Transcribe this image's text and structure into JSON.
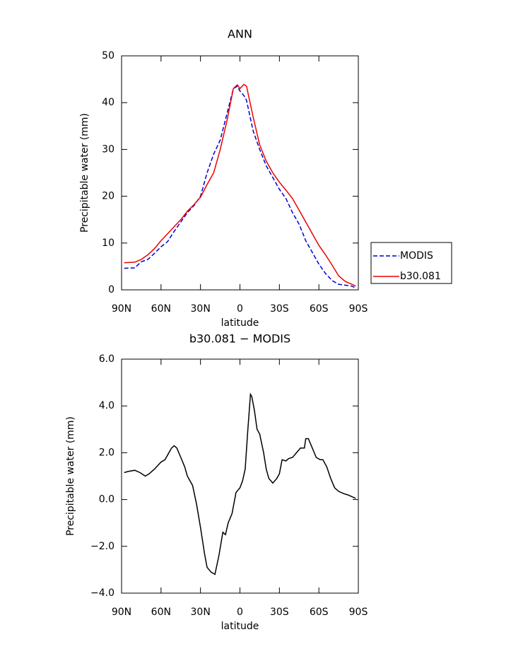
{
  "chart_data": [
    {
      "type": "line",
      "title": "ANN",
      "xlabel": "latitude",
      "ylabel": "Precipitable water (mm)",
      "x": [
        88,
        80,
        75,
        70,
        65,
        60,
        55,
        50,
        45,
        40,
        35,
        30,
        25,
        20,
        15,
        10,
        5,
        2,
        0,
        -3,
        -5,
        -10,
        -15,
        -20,
        -25,
        -30,
        -35,
        -40,
        -45,
        -50,
        -55,
        -60,
        -65,
        -70,
        -75,
        -80,
        -85,
        -88
      ],
      "series": [
        {
          "name": "MODIS",
          "color": "#0000cc",
          "linestyle": "dashed",
          "values": [
            4.6,
            4.7,
            6,
            6.5,
            7.8,
            9.2,
            10.3,
            12.5,
            14.5,
            16.5,
            18,
            20,
            25,
            29,
            32,
            37.5,
            43,
            43.5,
            42.5,
            41.5,
            40.5,
            34,
            30,
            26.5,
            24,
            21.5,
            19.5,
            16.5,
            14,
            10.5,
            8,
            5.5,
            3.5,
            2,
            1.2,
            1,
            0.8,
            0.4
          ]
        },
        {
          "name": "b30.081",
          "color": "#ee0000",
          "linestyle": "solid",
          "values": [
            5.8,
            5.9,
            6.5,
            7.5,
            8.8,
            10.5,
            12,
            13.5,
            15,
            16.8,
            18.2,
            19.8,
            22.5,
            25,
            30,
            36,
            43,
            43.8,
            43,
            43.9,
            43.5,
            37,
            31,
            27.5,
            25,
            23,
            21.3,
            19.5,
            17,
            14.5,
            12,
            9.5,
            7.5,
            5.3,
            3,
            1.8,
            1.2,
            0.8
          ]
        }
      ],
      "xlim": [
        90,
        -90
      ],
      "xticks": [
        {
          "value": 90,
          "label": "90N"
        },
        {
          "value": 60,
          "label": "60N"
        },
        {
          "value": 30,
          "label": "30N"
        },
        0,
        {
          "value": -30,
          "label": "30S"
        },
        {
          "value": -60,
          "label": "60S"
        },
        {
          "value": -90,
          "label": "90S"
        }
      ],
      "ylim": [
        0,
        50
      ],
      "yticks": [
        0,
        10,
        20,
        30,
        40,
        50
      ],
      "legend": "right"
    },
    {
      "type": "line",
      "title": "b30.081 − MODIS",
      "xlabel": "latitude",
      "ylabel": "Precipitable water (mm)",
      "x": [
        88,
        85,
        80,
        76,
        72,
        69,
        65,
        60,
        57,
        52,
        50,
        48,
        45,
        42,
        40,
        36,
        33,
        30,
        27,
        25,
        22,
        19,
        16,
        13,
        11,
        9,
        6,
        3,
        0,
        -2,
        -4,
        -6,
        -8,
        -9,
        -11,
        -13,
        -15,
        -18,
        -20,
        -22,
        -25,
        -28,
        -30,
        -32,
        -35,
        -37,
        -40,
        -43,
        -46,
        -49,
        -50,
        -52,
        -55,
        -58,
        -61,
        -63,
        -66,
        -69,
        -72,
        -75,
        -79,
        -82,
        -86,
        -88
      ],
      "values": [
        1.15,
        1.2,
        1.25,
        1.15,
        1.0,
        1.1,
        1.3,
        1.6,
        1.7,
        2.2,
        2.3,
        2.2,
        1.8,
        1.4,
        1.0,
        0.6,
        -0.2,
        -1.2,
        -2.3,
        -2.9,
        -3.1,
        -3.2,
        -2.4,
        -1.4,
        -1.5,
        -1.0,
        -0.6,
        0.3,
        0.5,
        0.8,
        1.3,
        3.0,
        4.5,
        4.4,
        3.8,
        3.0,
        2.8,
        2.0,
        1.3,
        0.9,
        0.7,
        0.9,
        1.1,
        1.7,
        1.65,
        1.75,
        1.8,
        2.0,
        2.2,
        2.2,
        2.6,
        2.6,
        2.2,
        1.8,
        1.7,
        1.7,
        1.4,
        0.9,
        0.5,
        0.35,
        0.25,
        0.2,
        0.1,
        0.05
      ],
      "color": "#000000",
      "xlim": [
        90,
        -90
      ],
      "xticks": [
        {
          "value": 90,
          "label": "90N"
        },
        {
          "value": 60,
          "label": "60N"
        },
        {
          "value": 30,
          "label": "30N"
        },
        0,
        {
          "value": -30,
          "label": "30S"
        },
        {
          "value": -60,
          "label": "60S"
        },
        {
          "value": -90,
          "label": "90S"
        }
      ],
      "ylim": [
        -4,
        6
      ],
      "yticks": [
        {
          "value": -4,
          "label": "−4.0"
        },
        {
          "value": -2,
          "label": "−2.0"
        },
        {
          "value": 0,
          "label": "0.0"
        },
        {
          "value": 2,
          "label": "2.0"
        },
        {
          "value": 4,
          "label": "4.0"
        },
        {
          "value": 6,
          "label": "6.0"
        }
      ]
    }
  ]
}
